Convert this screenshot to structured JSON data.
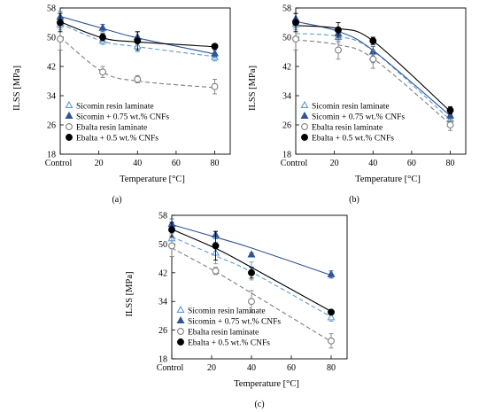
{
  "figure": {
    "charts": [
      {
        "key": "a",
        "caption": "(a)",
        "xlabel": "Temperature [°C]",
        "ylabel": "ILSS [MPa]",
        "legend_position": "bottom-left"
      },
      {
        "key": "b",
        "caption": "(b)",
        "xlabel": "Temperature [°C]",
        "ylabel": "ILSS [MPa]",
        "legend_position": "bottom-left"
      },
      {
        "key": "c",
        "caption": "(c)",
        "xlabel": "Temperature [°C]",
        "ylabel": "ILSS [MPa]",
        "legend_position": "bottom-left"
      }
    ]
  },
  "chart_data": [
    {
      "type": "scatter",
      "panel": "(a)",
      "xlabel": "Temperature [°C]",
      "ylabel": "ILSS [MPa]",
      "xlim": [
        0,
        88
      ],
      "ylim": [
        18,
        58
      ],
      "x_ticks": [
        {
          "value": 0,
          "label": "Control"
        },
        {
          "value": 20,
          "label": "20"
        },
        {
          "value": 40,
          "label": "40"
        },
        {
          "value": 60,
          "label": "60"
        },
        {
          "value": 80,
          "label": "80"
        }
      ],
      "y_ticks": [
        18,
        26,
        34,
        42,
        50,
        58
      ],
      "grid": false,
      "trend": "exponential decay fit",
      "series": [
        {
          "name": "Sicomin resin laminate",
          "marker": "open-triangle",
          "color": "#5b9bd5",
          "line_style": "dashed",
          "x": [
            0,
            22,
            40,
            80
          ],
          "y": [
            53.5,
            49.0,
            47.5,
            44.5
          ],
          "err": [
            1.5,
            1.0,
            1.5,
            1.0
          ],
          "fit": [
            53.7,
            48.9,
            47.4,
            44.7
          ]
        },
        {
          "name": "Sicomin + 0.75 wt.% CNFs",
          "marker": "filled-triangle",
          "color": "#2f5597",
          "line_style": "solid",
          "x": [
            0,
            22,
            40,
            80
          ],
          "y": [
            55.5,
            52.5,
            50.0,
            45.5
          ],
          "err": [
            1.5,
            1.0,
            1.5,
            1.0
          ],
          "fit": [
            55.7,
            52.4,
            49.8,
            45.4
          ]
        },
        {
          "name": "Ebalta resin laminate",
          "marker": "open-circle",
          "color": "#7f7f7f",
          "line_style": "dashed",
          "x": [
            0,
            22,
            40,
            80
          ],
          "y": [
            49.5,
            40.5,
            38.5,
            36.5
          ],
          "err": [
            3.0,
            1.5,
            1.0,
            2.0
          ],
          "fit": [
            50.0,
            40.5,
            38.0,
            36.2
          ]
        },
        {
          "name": "Ebalta + 0.5 wt.% CNFs",
          "marker": "filled-circle",
          "color": "#000000",
          "line_style": "solid",
          "x": [
            0,
            22,
            40,
            80
          ],
          "y": [
            54.0,
            50.0,
            49.0,
            47.5
          ],
          "err": [
            2.5,
            1.0,
            2.5,
            0.5
          ],
          "fit": [
            54.2,
            49.8,
            48.7,
            47.4
          ]
        }
      ]
    },
    {
      "type": "scatter",
      "panel": "(b)",
      "xlabel": "Temperature [°C]",
      "ylabel": "ILSS [MPa]",
      "xlim": [
        0,
        88
      ],
      "ylim": [
        18,
        58
      ],
      "x_ticks": [
        {
          "value": 0,
          "label": "Control"
        },
        {
          "value": 20,
          "label": "20"
        },
        {
          "value": 40,
          "label": "40"
        },
        {
          "value": 60,
          "label": "60"
        },
        {
          "value": 80,
          "label": "80"
        }
      ],
      "y_ticks": [
        18,
        26,
        34,
        42,
        50,
        58
      ],
      "grid": false,
      "trend": "polynomial fit",
      "series": [
        {
          "name": "Sicomin resin laminate",
          "marker": "open-triangle",
          "color": "#5b9bd5",
          "line_style": "dashed",
          "x": [
            0,
            22,
            40,
            80
          ],
          "y": [
            53.5,
            50.0,
            44.5,
            27.5
          ],
          "err": [
            1.5,
            1.5,
            1.5,
            1.5
          ],
          "fit": [
            51.0,
            50.2,
            46.3,
            27.4
          ]
        },
        {
          "name": "Sicomin + 0.75 wt.% CNFs",
          "marker": "filled-triangle",
          "color": "#2f5597",
          "line_style": "solid",
          "x": [
            0,
            22,
            40,
            80
          ],
          "y": [
            55.0,
            51.0,
            46.0,
            28.5
          ],
          "err": [
            1.5,
            1.5,
            1.5,
            1.5
          ],
          "fit": [
            54.3,
            51.6,
            46.4,
            28.5
          ]
        },
        {
          "name": "Ebalta resin laminate",
          "marker": "open-circle",
          "color": "#7f7f7f",
          "line_style": "dashed",
          "x": [
            0,
            22,
            40,
            80
          ],
          "y": [
            49.5,
            46.5,
            44.0,
            26.0
          ],
          "err": [
            3.0,
            2.5,
            2.5,
            1.5
          ],
          "fit": [
            49.3,
            47.9,
            44.2,
            26.2
          ]
        },
        {
          "name": "Ebalta + 0.5 wt.% CNFs",
          "marker": "filled-circle",
          "color": "#000000",
          "line_style": "solid",
          "x": [
            0,
            22,
            40,
            80
          ],
          "y": [
            54.0,
            52.0,
            49.0,
            30.0
          ],
          "err": [
            2.5,
            2.0,
            1.0,
            1.0
          ],
          "fit": [
            53.2,
            52.4,
            49.0,
            29.7
          ]
        }
      ]
    },
    {
      "type": "scatter",
      "panel": "(c)",
      "xlabel": "Temperature [°C]",
      "ylabel": "ILSS [MPa]",
      "xlim": [
        0,
        88
      ],
      "ylim": [
        18,
        58
      ],
      "x_ticks": [
        {
          "value": 0,
          "label": "Control"
        },
        {
          "value": 20,
          "label": "20"
        },
        {
          "value": 40,
          "label": "40"
        },
        {
          "value": 60,
          "label": "60"
        },
        {
          "value": 80,
          "label": "80"
        }
      ],
      "y_ticks": [
        18,
        26,
        34,
        42,
        50,
        58
      ],
      "grid": false,
      "trend": "linear fit",
      "series": [
        {
          "name": "Sicomin resin laminate",
          "marker": "open-triangle",
          "color": "#5b9bd5",
          "line_style": "dashed",
          "x": [
            0,
            22,
            40,
            80
          ],
          "y": [
            51.5,
            47.5,
            42.5,
            29.5
          ],
          "err": [
            1.5,
            3.0,
            2.5,
            1.0
          ],
          "fit": [
            52.0,
            46.7,
            42.2,
            29.7
          ]
        },
        {
          "name": "Sicomin + 0.75 wt.% CNFs",
          "marker": "filled-triangle",
          "color": "#2f5597",
          "line_style": "solid",
          "x": [
            0,
            22,
            40,
            80
          ],
          "y": [
            55.5,
            52.5,
            47.0,
            41.5
          ],
          "err": [
            1.5,
            1.0,
            0.5,
            1.0
          ],
          "fit": [
            55.4,
            51.9,
            48.9,
            41.3
          ]
        },
        {
          "name": "Ebalta resin laminate",
          "marker": "open-circle",
          "color": "#7f7f7f",
          "line_style": "dashed",
          "x": [
            0,
            22,
            40,
            80
          ],
          "y": [
            49.5,
            42.5,
            34.0,
            23.0
          ],
          "err": [
            3.0,
            1.0,
            3.0,
            2.0
          ],
          "fit": [
            48.9,
            42.3,
            36.3,
            22.8
          ]
        },
        {
          "name": "Ebalta + 0.5 wt.% CNFs",
          "marker": "filled-circle",
          "color": "#000000",
          "line_style": "solid",
          "x": [
            0,
            22,
            40,
            80
          ],
          "y": [
            54.0,
            49.5,
            42.0,
            31.0
          ],
          "err": [
            2.0,
            4.0,
            1.5,
            0.5
          ],
          "fit": [
            54.1,
            48.8,
            43.5,
            31.2
          ]
        }
      ]
    }
  ]
}
